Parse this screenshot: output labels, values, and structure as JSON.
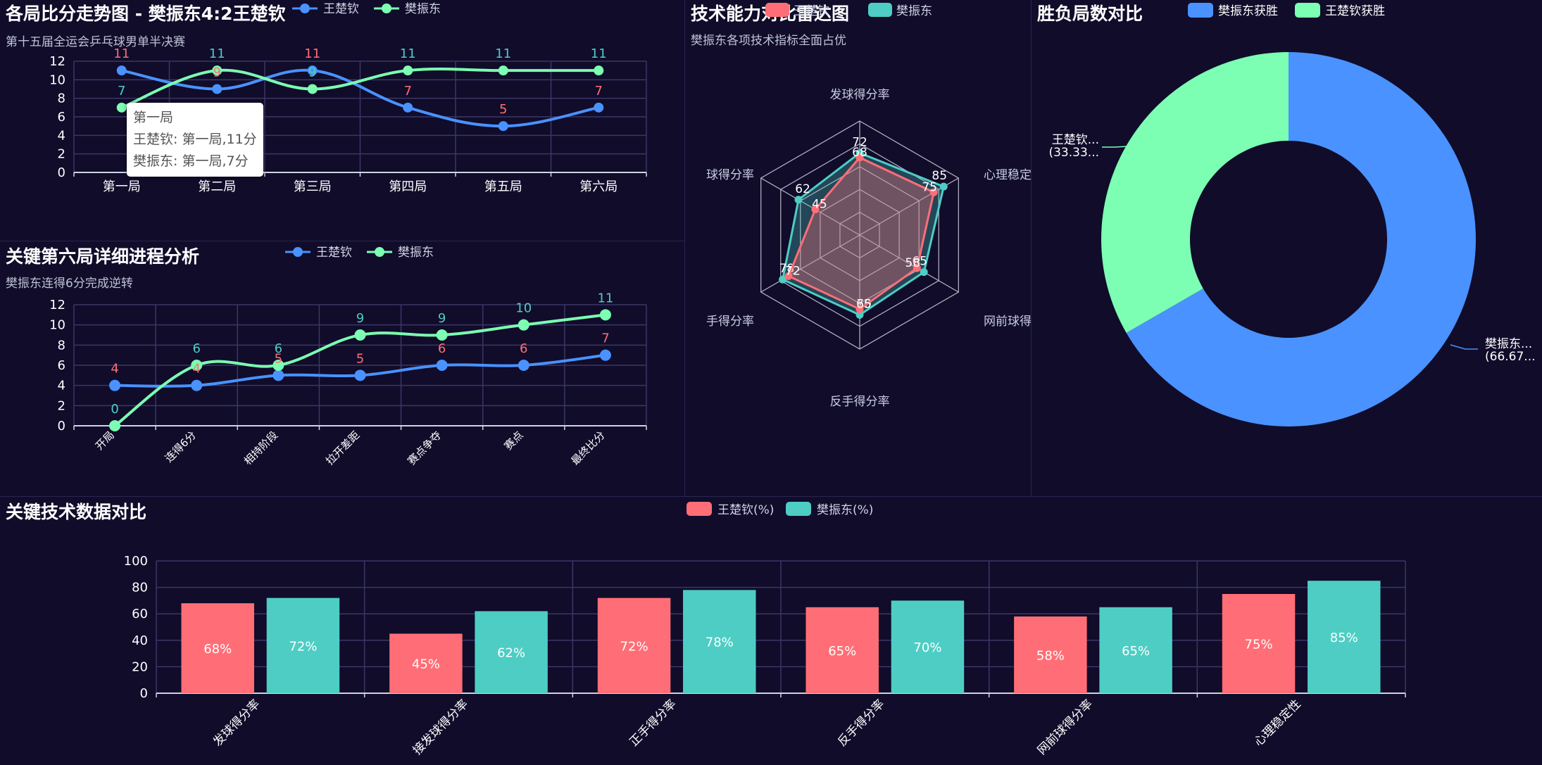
{
  "colors": {
    "wang": "#4992ff",
    "fan": "#7cffb2",
    "wangBar": "#ff6e76",
    "fanBar": "#4ecdc4",
    "grid": "#3b3766",
    "axis": "#cfd3e6",
    "bg": "#100c2a"
  },
  "chart_data": [
    {
      "id": "game_trend",
      "type": "line",
      "title": "各局比分走势图 - 樊振东4:2王楚钦",
      "subtitle": "第十五届全运会乒乓球男单半决赛",
      "categories": [
        "第一局",
        "第二局",
        "第三局",
        "第四局",
        "第五局",
        "第六局"
      ],
      "series": [
        {
          "name": "王楚钦",
          "values": [
            11,
            9,
            11,
            7,
            5,
            7
          ]
        },
        {
          "name": "樊振东",
          "values": [
            7,
            11,
            9,
            11,
            11,
            11
          ]
        }
      ],
      "ylim": [
        0,
        12
      ],
      "yticks": [
        "0",
        "2",
        "4",
        "6",
        "8",
        "10",
        "12"
      ],
      "legend": "top-center",
      "tooltip": {
        "title": "第一局",
        "lines": [
          "王楚钦: 第一局,11分",
          "樊振东: 第一局,7分"
        ]
      }
    },
    {
      "id": "game6_progress",
      "type": "line",
      "title": "关键第六局详细进程分析",
      "subtitle": "樊振东连得6分完成逆转",
      "categories": [
        "开局",
        "连得6分",
        "相持阶段",
        "拉开差距",
        "赛点争夺",
        "赛点",
        "最终比分"
      ],
      "series": [
        {
          "name": "王楚钦",
          "values": [
            4,
            4,
            5,
            5,
            6,
            6,
            7
          ]
        },
        {
          "name": "樊振东",
          "values": [
            0,
            6,
            6,
            9,
            9,
            10,
            11
          ]
        }
      ],
      "ylim": [
        0,
        12
      ],
      "yticks": [
        "0",
        "2",
        "4",
        "6",
        "8",
        "10",
        "12"
      ],
      "legend": "top-center"
    },
    {
      "id": "radar",
      "type": "radar",
      "title": "技术能力对比雷达图",
      "subtitle": "樊振东各项技术指标全面占优",
      "indicators": [
        "发球得分率",
        "心理稳定性",
        "网前球得分率",
        "反手得分率",
        "正手得分率",
        "接发球得分率"
      ],
      "indicator_labels": [
        "发球得分率",
        "心理稳定",
        "网前球得",
        "反手得分率",
        "手得分率",
        "球得分率"
      ],
      "max": 100,
      "series": [
        {
          "name": "王楚钦",
          "values": [
            68,
            75,
            58,
            65,
            72,
            45
          ]
        },
        {
          "name": "樊振东",
          "values": [
            72,
            85,
            65,
            70,
            78,
            62
          ]
        }
      ],
      "legend": "top-right"
    },
    {
      "id": "donut",
      "type": "pie",
      "title": "胜负局数对比",
      "slices": [
        {
          "name": "樊振东获胜",
          "value": 4,
          "label": "樊振东...",
          "pct": "(66.67..."
        },
        {
          "name": "王楚钦获胜",
          "value": 2,
          "label": "王楚钦...",
          "pct": "(33.33..."
        }
      ],
      "legend": "top-center"
    },
    {
      "id": "tech_bar",
      "type": "bar",
      "title": "关键技术数据对比",
      "categories": [
        "发球得分率",
        "接发球得分率",
        "正手得分率",
        "反手得分率",
        "网前球得分率",
        "心理稳定性"
      ],
      "series": [
        {
          "name": "王楚钦(%)",
          "values": [
            68,
            45,
            72,
            65,
            58,
            75
          ]
        },
        {
          "name": "樊振东(%)",
          "values": [
            72,
            62,
            78,
            70,
            65,
            85
          ]
        }
      ],
      "ylim": [
        0,
        100
      ],
      "yticks": [
        "0",
        "20",
        "40",
        "60",
        "80",
        "100"
      ],
      "legend": "top-center"
    }
  ]
}
